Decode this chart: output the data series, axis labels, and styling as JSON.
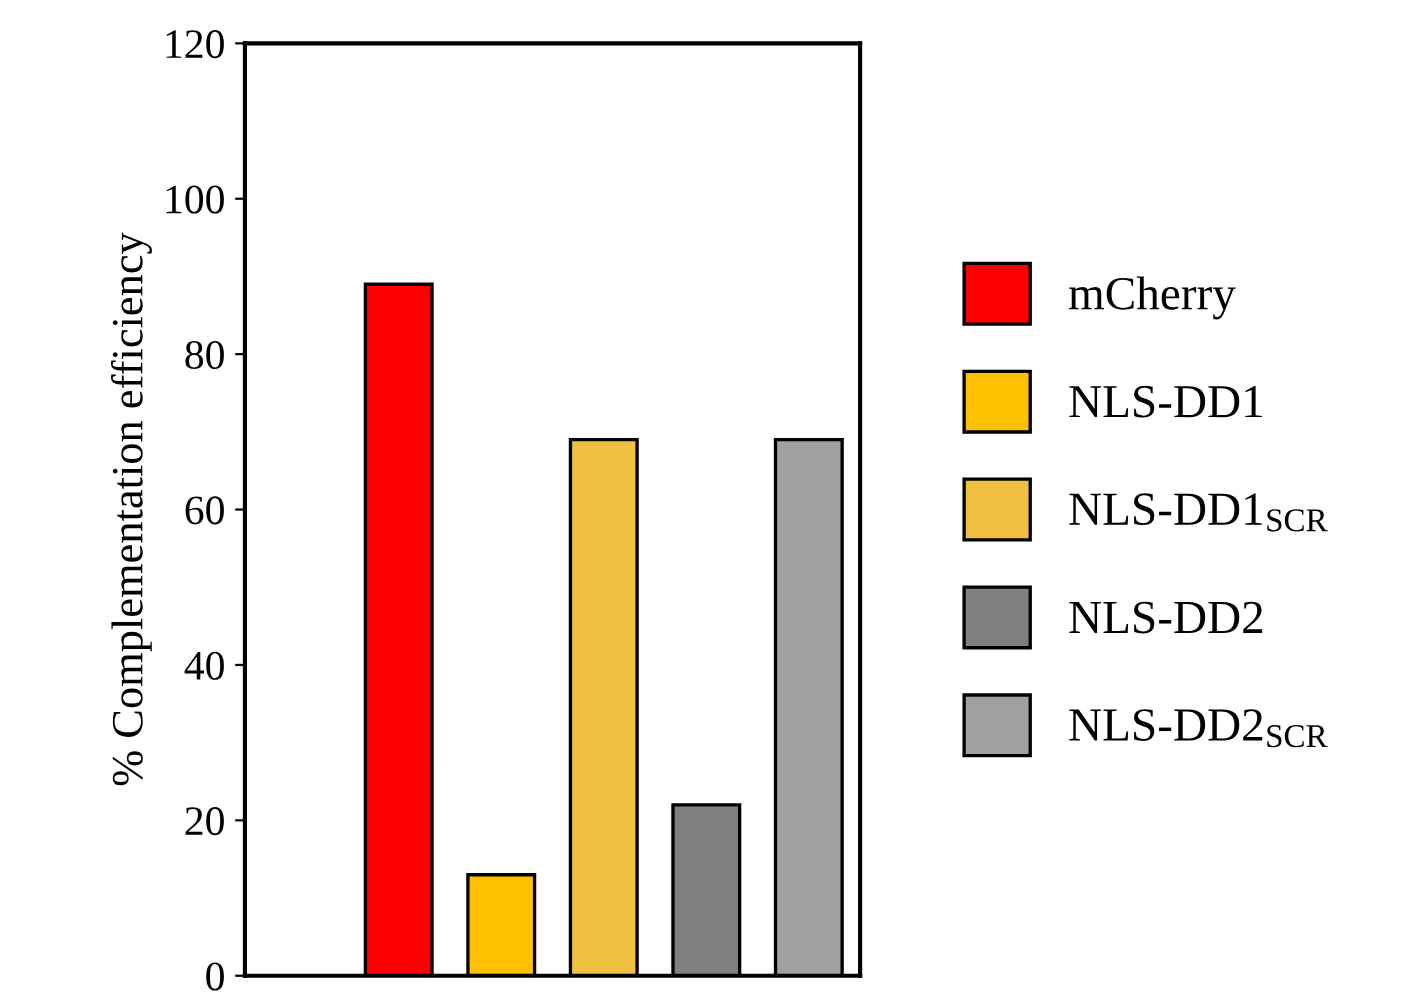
{
  "chart_data": {
    "type": "bar",
    "ylabel": "% Complementation efficiency",
    "categories": [
      null,
      null,
      null,
      null,
      null,
      null
    ],
    "series": [
      {
        "name": "mCherry",
        "color": "#ff0000",
        "values": [
          null,
          89,
          null,
          null,
          null,
          null
        ]
      },
      {
        "name": "NLS-DD1",
        "color": "#ffc000",
        "values": [
          null,
          null,
          13,
          null,
          null,
          null
        ]
      },
      {
        "name": "NLS-DD1$_{SCR}$",
        "color": "#f0c040",
        "values": [
          null,
          null,
          null,
          69,
          null,
          null
        ]
      },
      {
        "name": "NLS-DD2",
        "color": "#808080",
        "values": [
          null,
          null,
          null,
          null,
          22,
          null
        ]
      },
      {
        "name": "NLS-DD2$_{SCR}$",
        "color": "#a0a0a0",
        "values": [
          null,
          null,
          null,
          null,
          null,
          69
        ]
      }
    ],
    "ylim": [
      0,
      120
    ],
    "yticks": [
      0,
      20,
      40,
      60,
      80,
      100,
      120
    ],
    "grid": false,
    "legend": "right",
    "tick_labels": "y"
  }
}
